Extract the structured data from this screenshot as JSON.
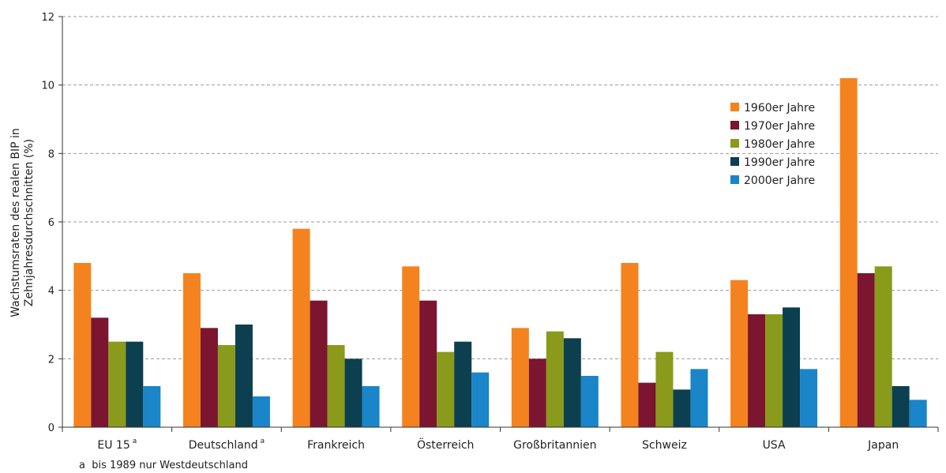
{
  "chart_data": {
    "type": "bar",
    "ylabel_line1": "Wachstumsraten des realen BIP in",
    "ylabel_line2": "Zehnjahresdurchschnitten (%)",
    "ylim": [
      0,
      12
    ],
    "yticks": [
      "0",
      "2",
      "4",
      "6",
      "8",
      "10",
      "12"
    ],
    "grid": "horizontal dashed",
    "legend_position": "top-right",
    "footnote_marker": "a",
    "footnote": "a  bis 1989 nur Westdeutschland",
    "categories": [
      {
        "label": "EU 15",
        "sup": "a"
      },
      {
        "label": "Deutschland",
        "sup": "a"
      },
      {
        "label": "Frankreich",
        "sup": ""
      },
      {
        "label": "Österreich",
        "sup": ""
      },
      {
        "label": "Großbritannien",
        "sup": ""
      },
      {
        "label": "Schweiz",
        "sup": ""
      },
      {
        "label": "USA",
        "sup": ""
      },
      {
        "label": "Japan",
        "sup": ""
      }
    ],
    "series": [
      {
        "name": "1960er Jahre",
        "color": "#f4831f",
        "values": [
          4.8,
          4.5,
          5.8,
          4.7,
          2.9,
          4.8,
          4.3,
          10.2
        ]
      },
      {
        "name": "1970er Jahre",
        "color": "#7b1530",
        "values": [
          3.2,
          2.9,
          3.7,
          3.7,
          2.0,
          1.3,
          3.3,
          4.5
        ]
      },
      {
        "name": "1980er Jahre",
        "color": "#8a9a1b",
        "values": [
          2.5,
          2.4,
          2.4,
          2.2,
          2.8,
          2.2,
          3.3,
          4.7
        ]
      },
      {
        "name": "1990er Jahre",
        "color": "#0c3f4f",
        "values": [
          2.5,
          3.0,
          2.0,
          2.5,
          2.6,
          1.1,
          3.5,
          1.2
        ]
      },
      {
        "name": "2000er Jahre",
        "color": "#1a85c8",
        "values": [
          1.2,
          0.9,
          1.2,
          1.6,
          1.5,
          1.7,
          1.7,
          0.8
        ]
      }
    ]
  }
}
